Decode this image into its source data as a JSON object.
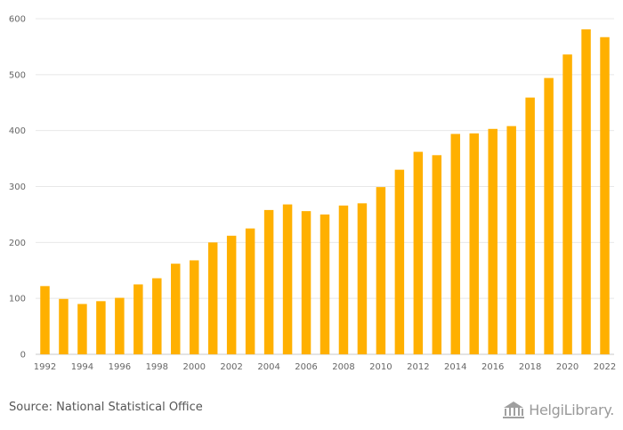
{
  "chart_data": {
    "type": "bar",
    "title": "",
    "xlabel": "",
    "ylabel": "",
    "categories": [
      "1992",
      "1993",
      "1994",
      "1995",
      "1996",
      "1997",
      "1998",
      "1999",
      "2000",
      "2001",
      "2002",
      "2003",
      "2004",
      "2005",
      "2006",
      "2007",
      "2008",
      "2009",
      "2010",
      "2011",
      "2012",
      "2013",
      "2014",
      "2015",
      "2016",
      "2017",
      "2018",
      "2019",
      "2020",
      "2021",
      "2022"
    ],
    "tick_labels_x": [
      "1992",
      "1994",
      "1996",
      "1998",
      "2000",
      "2002",
      "2004",
      "2006",
      "2008",
      "2010",
      "2012",
      "2014",
      "2016",
      "2018",
      "2020",
      "2022"
    ],
    "values": [
      122,
      99,
      90,
      95,
      101,
      125,
      136,
      162,
      168,
      200,
      212,
      225,
      258,
      268,
      256,
      250,
      266,
      270,
      299,
      330,
      362,
      356,
      394,
      395,
      403,
      408,
      459,
      494,
      536,
      581,
      567
    ],
    "ylim": [
      0,
      600
    ],
    "yticks": [
      0,
      100,
      200,
      300,
      400,
      500,
      600
    ],
    "grid": true,
    "bar_color": "#FFB000"
  },
  "footer": {
    "source": "Source: National Statistical Office",
    "brand": "HelgiLibrary."
  }
}
